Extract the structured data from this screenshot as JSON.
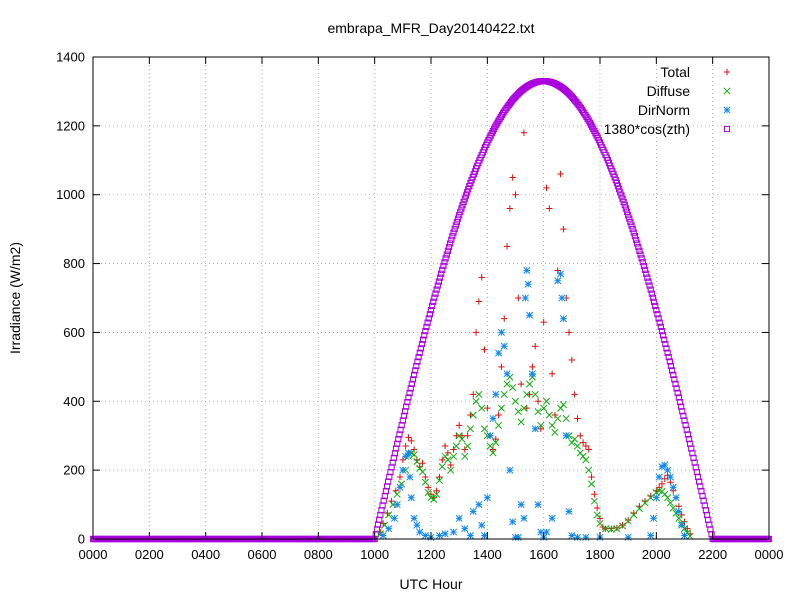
{
  "chart_data": {
    "type": "scatter",
    "title": "embrapa_MFR_Day20140422.txt",
    "xlabel": "UTC Hour",
    "ylabel": "Irradiance (W/m2)",
    "xlim": [
      0,
      24
    ],
    "ylim": [
      0,
      1400
    ],
    "x_ticks": [
      {
        "v": 0,
        "label": "0000"
      },
      {
        "v": 2,
        "label": "0200"
      },
      {
        "v": 4,
        "label": "0400"
      },
      {
        "v": 6,
        "label": "0600"
      },
      {
        "v": 8,
        "label": "0800"
      },
      {
        "v": 10,
        "label": "1000"
      },
      {
        "v": 12,
        "label": "1200"
      },
      {
        "v": 14,
        "label": "1400"
      },
      {
        "v": 16,
        "label": "1600"
      },
      {
        "v": 18,
        "label": "1800"
      },
      {
        "v": 20,
        "label": "2000"
      },
      {
        "v": 22,
        "label": "2200"
      },
      {
        "v": 24,
        "label": "0000"
      }
    ],
    "y_ticks": [
      0,
      200,
      400,
      600,
      800,
      1000,
      1200,
      1400
    ],
    "grid": true,
    "legend_position": "top-right",
    "series": [
      {
        "name": "Total",
        "marker": "plus",
        "color": "#dd1111",
        "points": [
          [
            10.2,
            20
          ],
          [
            10.3,
            45
          ],
          [
            10.45,
            75
          ],
          [
            10.6,
            110
          ],
          [
            10.75,
            140
          ],
          [
            10.9,
            180
          ],
          [
            11.0,
            230
          ],
          [
            11.1,
            270
          ],
          [
            11.2,
            295
          ],
          [
            11.3,
            285
          ],
          [
            11.4,
            260
          ],
          [
            11.5,
            230
          ],
          [
            11.6,
            210
          ],
          [
            11.7,
            220
          ],
          [
            11.8,
            180
          ],
          [
            11.9,
            150
          ],
          [
            12.0,
            130
          ],
          [
            12.1,
            120
          ],
          [
            12.2,
            140
          ],
          [
            12.3,
            180
          ],
          [
            12.4,
            230
          ],
          [
            12.5,
            270
          ],
          [
            12.6,
            250
          ],
          [
            12.7,
            215
          ],
          [
            12.8,
            260
          ],
          [
            12.9,
            300
          ],
          [
            13.0,
            330
          ],
          [
            13.1,
            300
          ],
          [
            13.2,
            260
          ],
          [
            13.3,
            300
          ],
          [
            13.4,
            360
          ],
          [
            13.5,
            420
          ],
          [
            13.6,
            600
          ],
          [
            13.7,
            690
          ],
          [
            13.8,
            760
          ],
          [
            13.9,
            550
          ],
          [
            14.0,
            380
          ],
          [
            14.1,
            300
          ],
          [
            14.2,
            260
          ],
          [
            14.3,
            290
          ],
          [
            14.4,
            360
          ],
          [
            14.5,
            500
          ],
          [
            14.6,
            640
          ],
          [
            14.7,
            850
          ],
          [
            14.8,
            960
          ],
          [
            14.9,
            1050
          ],
          [
            15.0,
            1000
          ],
          [
            15.1,
            700
          ],
          [
            15.2,
            450
          ],
          [
            15.3,
            1180
          ],
          [
            15.4,
            380
          ],
          [
            15.5,
            420
          ],
          [
            15.6,
            500
          ],
          [
            15.7,
            560
          ],
          [
            15.8,
            400
          ],
          [
            15.9,
            320
          ],
          [
            16.0,
            630
          ],
          [
            16.1,
            1020
          ],
          [
            16.2,
            960
          ],
          [
            16.3,
            480
          ],
          [
            16.4,
            360
          ],
          [
            16.5,
            780
          ],
          [
            16.6,
            1060
          ],
          [
            16.7,
            900
          ],
          [
            16.8,
            700
          ],
          [
            16.9,
            600
          ],
          [
            17.0,
            520
          ],
          [
            17.1,
            420
          ],
          [
            17.2,
            350
          ],
          [
            17.3,
            300
          ],
          [
            17.4,
            280
          ],
          [
            17.5,
            270
          ],
          [
            17.6,
            260
          ],
          [
            17.7,
            180
          ],
          [
            17.8,
            130
          ],
          [
            17.9,
            90
          ],
          [
            18.0,
            60
          ],
          [
            18.1,
            35
          ],
          [
            18.2,
            30
          ],
          [
            18.4,
            30
          ],
          [
            18.6,
            32
          ],
          [
            18.8,
            40
          ],
          [
            19.0,
            55
          ],
          [
            19.2,
            75
          ],
          [
            19.4,
            95
          ],
          [
            19.6,
            110
          ],
          [
            19.8,
            125
          ],
          [
            20.0,
            140
          ],
          [
            20.1,
            150
          ],
          [
            20.2,
            160
          ],
          [
            20.3,
            175
          ],
          [
            20.4,
            185
          ],
          [
            20.5,
            165
          ],
          [
            20.6,
            140
          ],
          [
            20.7,
            120
          ],
          [
            20.8,
            95
          ],
          [
            20.9,
            70
          ],
          [
            21.0,
            50
          ],
          [
            21.1,
            30
          ],
          [
            21.2,
            15
          ]
        ]
      },
      {
        "name": "Diffuse",
        "marker": "cross",
        "color": "#11aa11",
        "points": [
          [
            10.2,
            15
          ],
          [
            10.35,
            40
          ],
          [
            10.5,
            70
          ],
          [
            10.65,
            100
          ],
          [
            10.8,
            130
          ],
          [
            10.95,
            160
          ],
          [
            11.1,
            200
          ],
          [
            11.2,
            240
          ],
          [
            11.3,
            250
          ],
          [
            11.4,
            245
          ],
          [
            11.5,
            225
          ],
          [
            11.6,
            205
          ],
          [
            11.7,
            195
          ],
          [
            11.8,
            165
          ],
          [
            11.9,
            135
          ],
          [
            12.0,
            120
          ],
          [
            12.1,
            115
          ],
          [
            12.2,
            130
          ],
          [
            12.3,
            170
          ],
          [
            12.4,
            210
          ],
          [
            12.5,
            240
          ],
          [
            12.6,
            230
          ],
          [
            12.7,
            200
          ],
          [
            12.8,
            240
          ],
          [
            12.9,
            270
          ],
          [
            13.0,
            300
          ],
          [
            13.1,
            290
          ],
          [
            13.2,
            240
          ],
          [
            13.3,
            270
          ],
          [
            13.4,
            320
          ],
          [
            13.5,
            360
          ],
          [
            13.6,
            400
          ],
          [
            13.7,
            420
          ],
          [
            13.8,
            380
          ],
          [
            13.9,
            320
          ],
          [
            14.0,
            300
          ],
          [
            14.1,
            270
          ],
          [
            14.2,
            250
          ],
          [
            14.3,
            280
          ],
          [
            14.4,
            330
          ],
          [
            14.5,
            380
          ],
          [
            14.6,
            420
          ],
          [
            14.7,
            450
          ],
          [
            14.8,
            470
          ],
          [
            14.9,
            440
          ],
          [
            15.0,
            400
          ],
          [
            15.1,
            370
          ],
          [
            15.2,
            340
          ],
          [
            15.3,
            380
          ],
          [
            15.4,
            420
          ],
          [
            15.5,
            450
          ],
          [
            15.6,
            470
          ],
          [
            15.7,
            420
          ],
          [
            15.8,
            370
          ],
          [
            15.9,
            330
          ],
          [
            16.0,
            380
          ],
          [
            16.1,
            400
          ],
          [
            16.2,
            360
          ],
          [
            16.3,
            330
          ],
          [
            16.4,
            310
          ],
          [
            16.5,
            350
          ],
          [
            16.6,
            380
          ],
          [
            16.7,
            390
          ],
          [
            16.8,
            350
          ],
          [
            16.9,
            300
          ],
          [
            17.0,
            280
          ],
          [
            17.1,
            290
          ],
          [
            17.2,
            270
          ],
          [
            17.3,
            250
          ],
          [
            17.4,
            240
          ],
          [
            17.5,
            230
          ],
          [
            17.6,
            200
          ],
          [
            17.7,
            160
          ],
          [
            17.8,
            110
          ],
          [
            17.9,
            70
          ],
          [
            18.0,
            45
          ],
          [
            18.2,
            30
          ],
          [
            18.4,
            28
          ],
          [
            18.6,
            30
          ],
          [
            18.8,
            38
          ],
          [
            19.0,
            52
          ],
          [
            19.2,
            70
          ],
          [
            19.4,
            88
          ],
          [
            19.6,
            105
          ],
          [
            19.8,
            120
          ],
          [
            20.0,
            135
          ],
          [
            20.1,
            140
          ],
          [
            20.2,
            138
          ],
          [
            20.3,
            130
          ],
          [
            20.4,
            120
          ],
          [
            20.5,
            105
          ],
          [
            20.6,
            90
          ],
          [
            20.7,
            75
          ],
          [
            20.8,
            60
          ],
          [
            20.9,
            45
          ],
          [
            21.0,
            30
          ],
          [
            21.1,
            18
          ],
          [
            21.2,
            8
          ]
        ]
      },
      {
        "name": "DirNorm",
        "marker": "star",
        "color": "#1188ee",
        "points": [
          [
            10.3,
            10
          ],
          [
            10.5,
            30
          ],
          [
            10.7,
            60
          ],
          [
            10.8,
            100
          ],
          [
            10.9,
            150
          ],
          [
            11.0,
            200
          ],
          [
            11.1,
            240
          ],
          [
            11.2,
            250
          ],
          [
            11.25,
            180
          ],
          [
            11.3,
            120
          ],
          [
            11.4,
            60
          ],
          [
            11.5,
            40
          ],
          [
            11.6,
            20
          ],
          [
            11.8,
            10
          ],
          [
            12.0,
            5
          ],
          [
            12.3,
            10
          ],
          [
            12.5,
            15
          ],
          [
            12.8,
            20
          ],
          [
            13.0,
            60
          ],
          [
            13.2,
            30
          ],
          [
            13.4,
            10
          ],
          [
            13.5,
            80
          ],
          [
            13.7,
            100
          ],
          [
            13.8,
            40
          ],
          [
            13.9,
            10
          ],
          [
            14.0,
            120
          ],
          [
            14.1,
            300
          ],
          [
            14.2,
            350
          ],
          [
            14.3,
            420
          ],
          [
            14.4,
            540
          ],
          [
            14.5,
            600
          ],
          [
            14.6,
            560
          ],
          [
            14.7,
            480
          ],
          [
            14.8,
            200
          ],
          [
            14.9,
            50
          ],
          [
            15.0,
            5
          ],
          [
            15.1,
            5
          ],
          [
            15.2,
            100
          ],
          [
            15.3,
            60
          ],
          [
            15.35,
            700
          ],
          [
            15.4,
            780
          ],
          [
            15.45,
            740
          ],
          [
            15.5,
            650
          ],
          [
            15.6,
            480
          ],
          [
            15.7,
            320
          ],
          [
            15.8,
            100
          ],
          [
            15.9,
            20
          ],
          [
            16.0,
            5
          ],
          [
            16.1,
            20
          ],
          [
            16.3,
            60
          ],
          [
            16.5,
            750
          ],
          [
            16.6,
            770
          ],
          [
            16.65,
            700
          ],
          [
            16.7,
            640
          ],
          [
            16.8,
            300
          ],
          [
            16.9,
            80
          ],
          [
            17.0,
            10
          ],
          [
            17.2,
            5
          ],
          [
            17.5,
            5
          ],
          [
            18.0,
            5
          ],
          [
            19.0,
            5
          ],
          [
            19.8,
            10
          ],
          [
            19.9,
            60
          ],
          [
            20.0,
            120
          ],
          [
            20.1,
            180
          ],
          [
            20.2,
            210
          ],
          [
            20.3,
            215
          ],
          [
            20.4,
            200
          ],
          [
            20.5,
            180
          ],
          [
            20.6,
            150
          ],
          [
            20.7,
            120
          ],
          [
            20.8,
            80
          ],
          [
            20.9,
            40
          ],
          [
            21.0,
            10
          ]
        ]
      },
      {
        "name": "1380*cos(zth)",
        "marker": "square",
        "color": "#aa00dd",
        "formula": {
          "sunrise": 10.0,
          "sunset": 22.0,
          "noon": 16.0,
          "peak": 1330
        },
        "points": [
          [
            0,
            0
          ],
          [
            1,
            0
          ],
          [
            2,
            0
          ],
          [
            3,
            0
          ],
          [
            4,
            0
          ],
          [
            5,
            0
          ],
          [
            6,
            0
          ],
          [
            7,
            0
          ],
          [
            8,
            0
          ],
          [
            9,
            0
          ],
          [
            10,
            0
          ],
          [
            10.5,
            174
          ],
          [
            11,
            344
          ],
          [
            11.5,
            509
          ],
          [
            12,
            665
          ],
          [
            12.5,
            810
          ],
          [
            13,
            941
          ],
          [
            13.5,
            1055
          ],
          [
            14,
            1152
          ],
          [
            14.5,
            1229
          ],
          [
            15,
            1285
          ],
          [
            15.5,
            1319
          ],
          [
            16,
            1330
          ],
          [
            16.5,
            1319
          ],
          [
            17,
            1285
          ],
          [
            17.5,
            1229
          ],
          [
            18,
            1152
          ],
          [
            18.5,
            1055
          ],
          [
            19,
            941
          ],
          [
            19.5,
            810
          ],
          [
            20,
            665
          ],
          [
            20.5,
            509
          ],
          [
            21,
            344
          ],
          [
            21.5,
            174
          ],
          [
            22,
            0
          ],
          [
            23,
            0
          ],
          [
            24,
            0
          ]
        ]
      }
    ]
  }
}
